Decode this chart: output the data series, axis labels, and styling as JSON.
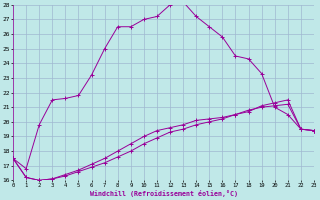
{
  "xlabel": "Windchill (Refroidissement éolien,°C)",
  "background_color": "#c0e8e8",
  "grid_color": "#a0b8d0",
  "line_color": "#990099",
  "xmin": 0,
  "xmax": 23,
  "ymin": 16,
  "ymax": 28,
  "line1_x": [
    0,
    1,
    2,
    3,
    4,
    5,
    6,
    7,
    8,
    9,
    10,
    11,
    12,
    13,
    14,
    15,
    16,
    17,
    18,
    19,
    20,
    21,
    22,
    23
  ],
  "line1_y": [
    17.5,
    16.8,
    19.8,
    21.5,
    21.6,
    21.8,
    23.2,
    25.0,
    26.5,
    26.5,
    27.0,
    27.2,
    28.0,
    28.2,
    27.2,
    26.5,
    25.8,
    24.5,
    24.3,
    23.3,
    21.0,
    20.5,
    19.5,
    19.4
  ],
  "line2_x": [
    0,
    1,
    2,
    3,
    4,
    5,
    6,
    7,
    8,
    9,
    10,
    11,
    12,
    13,
    14,
    15,
    16,
    17,
    18,
    19,
    20,
    21,
    22,
    23
  ],
  "line2_y": [
    17.5,
    16.2,
    16.0,
    16.1,
    16.3,
    16.6,
    16.9,
    17.2,
    17.6,
    18.0,
    18.5,
    18.9,
    19.3,
    19.5,
    19.8,
    20.0,
    20.2,
    20.5,
    20.8,
    21.0,
    21.1,
    21.2,
    19.5,
    19.4
  ],
  "line3_x": [
    0,
    1,
    2,
    3,
    4,
    5,
    6,
    7,
    8,
    9,
    10,
    11,
    12,
    13,
    14,
    15,
    16,
    17,
    18,
    19,
    20,
    21,
    22,
    23
  ],
  "line3_y": [
    17.5,
    16.2,
    16.0,
    16.1,
    16.4,
    16.7,
    17.1,
    17.5,
    18.0,
    18.5,
    19.0,
    19.4,
    19.6,
    19.8,
    20.1,
    20.2,
    20.3,
    20.5,
    20.7,
    21.1,
    21.3,
    21.5,
    19.5,
    19.4
  ]
}
